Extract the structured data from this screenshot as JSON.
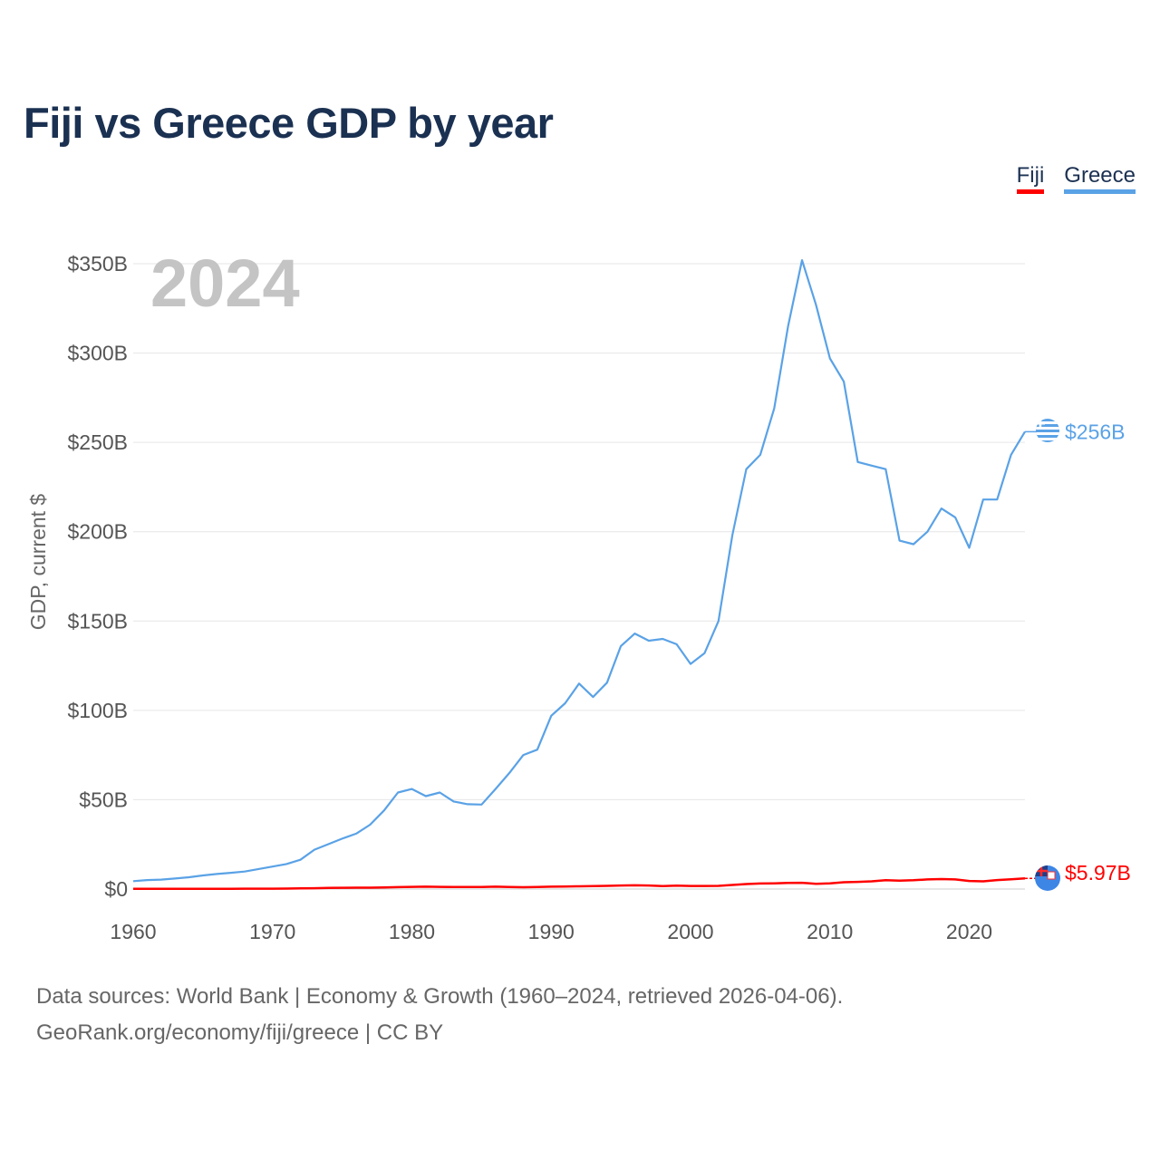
{
  "title": "Fiji vs Greece GDP by year",
  "legend": [
    {
      "label": "Fiji",
      "color": "#ff0000"
    },
    {
      "label": "Greece",
      "color": "#5aa2e6"
    }
  ],
  "year_watermark": "2024",
  "end_labels": {
    "greece": "$256B",
    "fiji": "$5.97B"
  },
  "footer": {
    "line1": "Data sources: World Bank | Economy & Growth (1960–2024, retrieved 2026-04-06).",
    "line2_link": "GeoRank.org/economy/fiji/greece",
    "line2_suffix": " | CC BY"
  },
  "chart_data": {
    "type": "line",
    "title": "Fiji vs Greece GDP by year",
    "xlabel": "",
    "ylabel": "GDP, current $",
    "xlim": [
      1960,
      2024
    ],
    "ylim": [
      0,
      350
    ],
    "y_unit": "billions of current US$",
    "y_ticks": [
      0,
      50,
      100,
      150,
      200,
      250,
      300,
      350
    ],
    "y_tick_labels": [
      "$0",
      "$50B",
      "$100B",
      "$150B",
      "$200B",
      "$250B",
      "$300B",
      "$350B"
    ],
    "x_ticks": [
      1960,
      1970,
      1980,
      1990,
      2000,
      2010,
      2020
    ],
    "x_tick_labels": [
      "1960",
      "1970",
      "1980",
      "1990",
      "2000",
      "2010",
      "2020"
    ],
    "grid": true,
    "legend_position": "top-right",
    "x": [
      1960,
      1961,
      1962,
      1963,
      1964,
      1965,
      1966,
      1967,
      1968,
      1969,
      1970,
      1971,
      1972,
      1973,
      1974,
      1975,
      1976,
      1977,
      1978,
      1979,
      1980,
      1981,
      1982,
      1983,
      1984,
      1985,
      1986,
      1987,
      1988,
      1989,
      1990,
      1991,
      1992,
      1993,
      1994,
      1995,
      1996,
      1997,
      1998,
      1999,
      2000,
      2001,
      2002,
      2003,
      2004,
      2005,
      2006,
      2007,
      2008,
      2009,
      2010,
      2011,
      2012,
      2013,
      2014,
      2015,
      2016,
      2017,
      2018,
      2019,
      2020,
      2021,
      2022,
      2023,
      2024
    ],
    "series": [
      {
        "name": "Fiji",
        "color": "#ff0000",
        "values": [
          0.11,
          0.12,
          0.13,
          0.13,
          0.14,
          0.15,
          0.16,
          0.17,
          0.18,
          0.2,
          0.22,
          0.26,
          0.33,
          0.45,
          0.6,
          0.7,
          0.74,
          0.78,
          0.88,
          1.07,
          1.2,
          1.3,
          1.2,
          1.1,
          1.1,
          1.1,
          1.3,
          1.1,
          1.0,
          1.1,
          1.3,
          1.4,
          1.5,
          1.6,
          1.8,
          2.0,
          2.1,
          2.0,
          1.6,
          1.9,
          1.7,
          1.7,
          1.8,
          2.3,
          2.8,
          3.1,
          3.2,
          3.4,
          3.5,
          2.9,
          3.2,
          3.8,
          4.0,
          4.3,
          4.9,
          4.7,
          4.9,
          5.4,
          5.6,
          5.4,
          4.5,
          4.3,
          5.0,
          5.5,
          5.97
        ]
      },
      {
        "name": "Greece",
        "color": "#5aa2e6",
        "values": [
          4.4,
          5.0,
          5.3,
          5.9,
          6.6,
          7.6,
          8.4,
          9.1,
          9.8,
          11.2,
          12.6,
          14.0,
          16.4,
          22.0,
          25.1,
          28.2,
          31.0,
          36.0,
          44.0,
          54.0,
          56.0,
          52.0,
          54.0,
          49.0,
          47.5,
          47.3,
          56.0,
          65.0,
          75.0,
          78.0,
          97.0,
          104.0,
          115.0,
          107.5,
          115.5,
          136.0,
          143.0,
          139.0,
          140.0,
          137.0,
          126.0,
          132.0,
          150.0,
          198.0,
          235.0,
          243.0,
          269.0,
          315.0,
          352.0,
          327.0,
          297.0,
          284.0,
          239.0,
          237.0,
          235.0,
          195.0,
          193.0,
          200.0,
          213.0,
          208.0,
          191.0,
          218.0,
          218.0,
          243.0,
          256.0
        ]
      }
    ]
  }
}
